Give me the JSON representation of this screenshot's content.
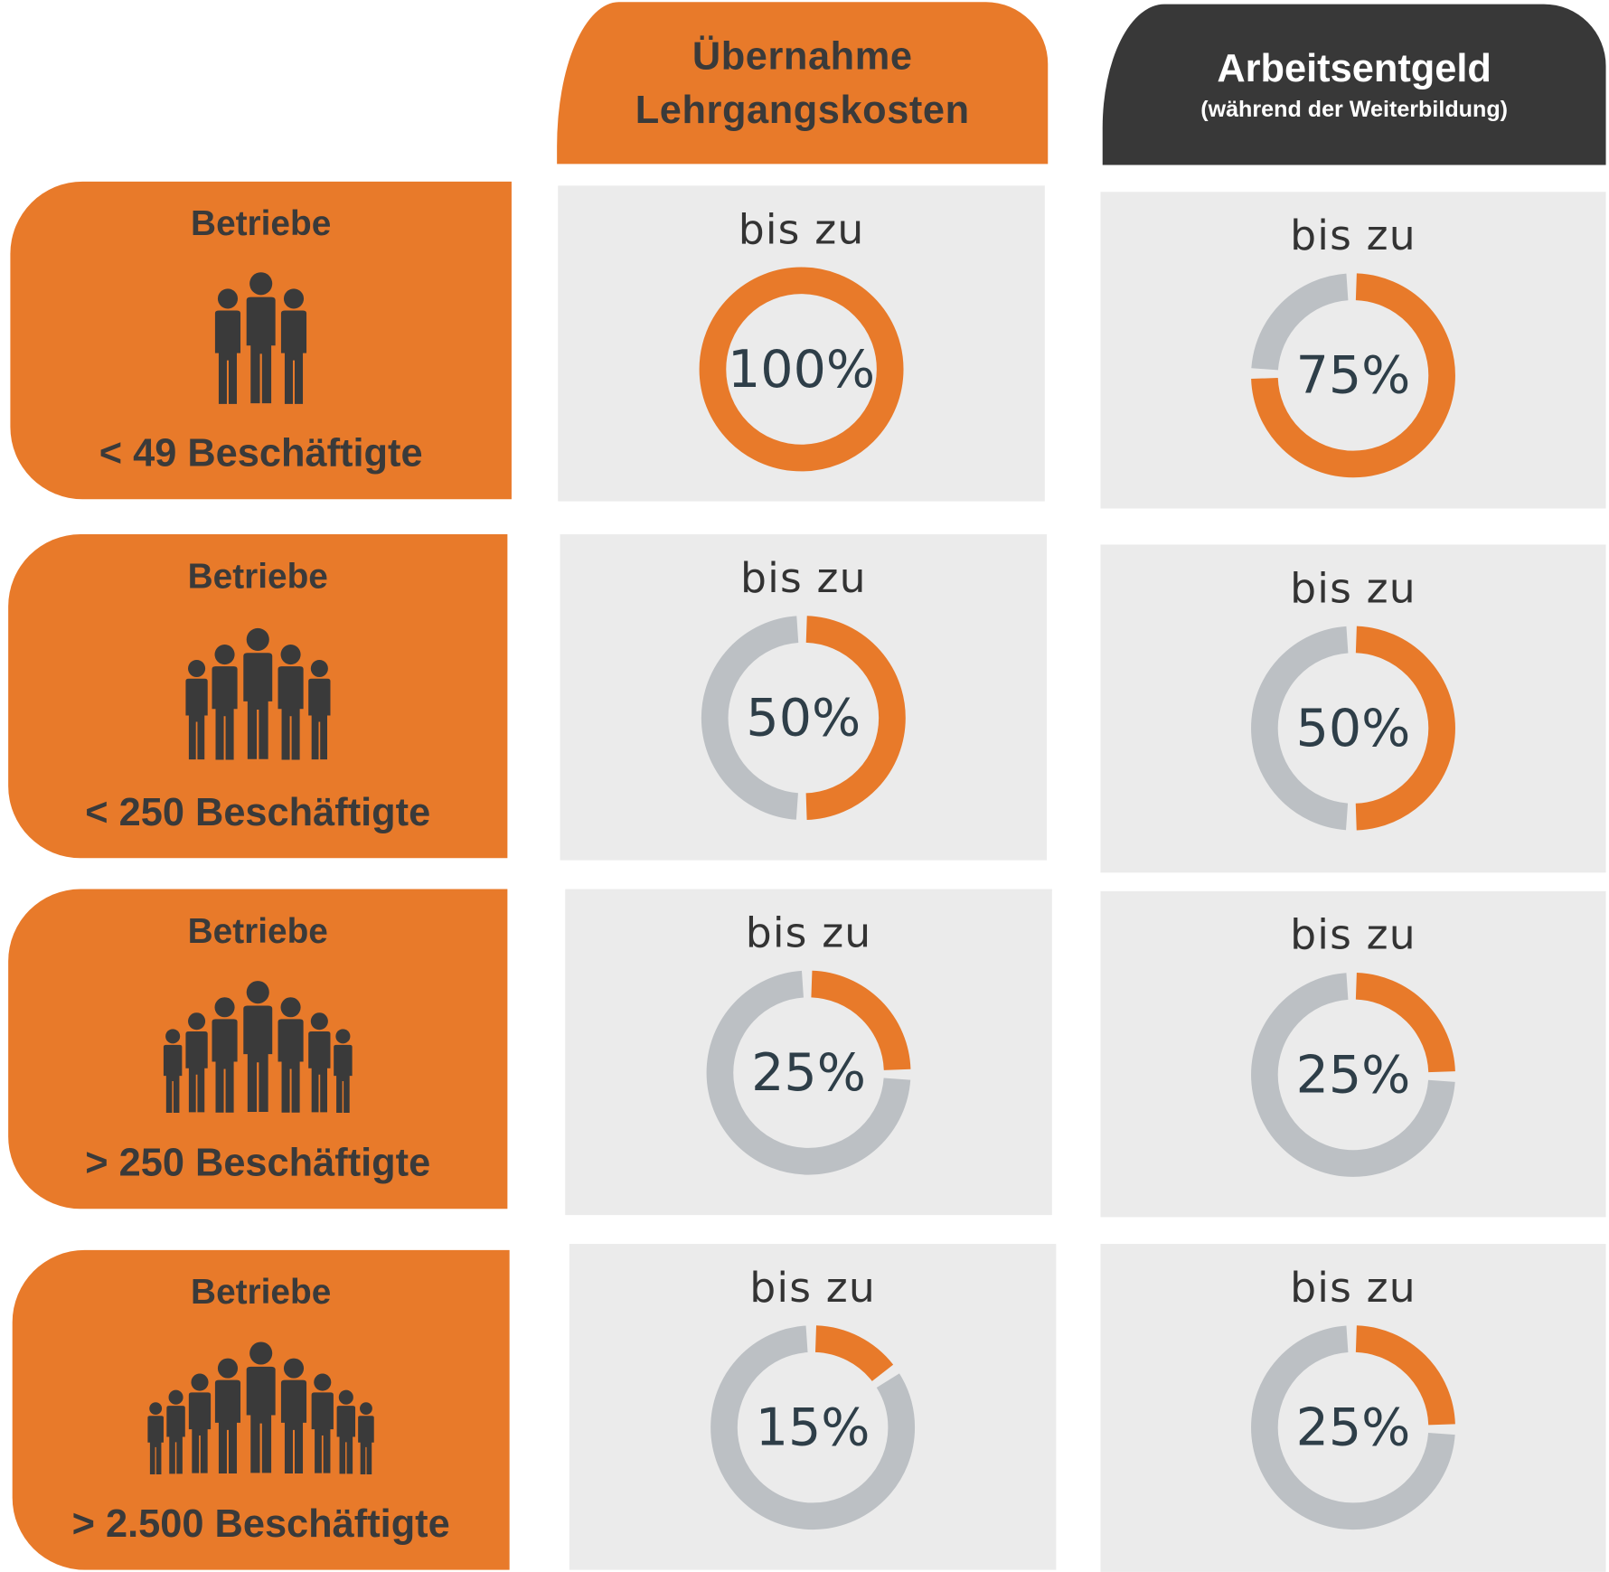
{
  "headers": {
    "col1": {
      "line1": "Übernahme",
      "line2": "Lehrgangskosten"
    },
    "col2": {
      "title": "Arbeitsentgeld",
      "subtitle": "(während der Weiterbildung)"
    }
  },
  "rows": [
    {
      "label_top": "Betriebe",
      "label_bottom": "< 49 Beschäftigte",
      "people": 3,
      "prefix1": "bis zu",
      "value1": "100%",
      "pct1": 100,
      "prefix2": "bis zu",
      "value2": "75%",
      "pct2": 75
    },
    {
      "label_top": "Betriebe",
      "label_bottom": "< 250 Beschäftigte",
      "people": 5,
      "prefix1": "bis zu",
      "value1": "50%",
      "pct1": 50,
      "prefix2": "bis zu",
      "value2": "50%",
      "pct2": 50
    },
    {
      "label_top": "Betriebe",
      "label_bottom": "> 250 Beschäftigte",
      "people": 7,
      "prefix1": "bis zu",
      "value1": "25%",
      "pct1": 25,
      "prefix2": "bis zu",
      "value2": "25%",
      "pct2": 25
    },
    {
      "label_top": "Betriebe",
      "label_bottom": "> 2.500 Beschäftigte",
      "people": 9,
      "prefix1": "bis zu",
      "value1": "15%",
      "pct1": 15,
      "prefix2": "bis zu",
      "value2": "25%",
      "pct2": 25
    }
  ],
  "colors": {
    "orange": "#e87a2a",
    "dark": "#383838",
    "track": "#bcc0c4",
    "cell_bg": "#ebebeb",
    "value_text": "#2e3e48"
  },
  "chart_data": {
    "type": "table",
    "title": "",
    "columns": [
      "Übernahme Lehrgangskosten",
      "Arbeitsentgeld (während der Weiterbildung)"
    ],
    "categories": [
      "< 49 Beschäftigte",
      "< 250 Beschäftigte",
      "> 250 Beschäftigte",
      "> 2.500 Beschäftigte"
    ],
    "series": [
      {
        "name": "Übernahme Lehrgangskosten",
        "values": [
          100,
          50,
          25,
          15
        ]
      },
      {
        "name": "Arbeitsentgeld (während der Weiterbildung)",
        "values": [
          75,
          50,
          25,
          25
        ]
      }
    ],
    "unit": "%",
    "value_prefix": "bis zu",
    "visual": "donut gauges"
  }
}
